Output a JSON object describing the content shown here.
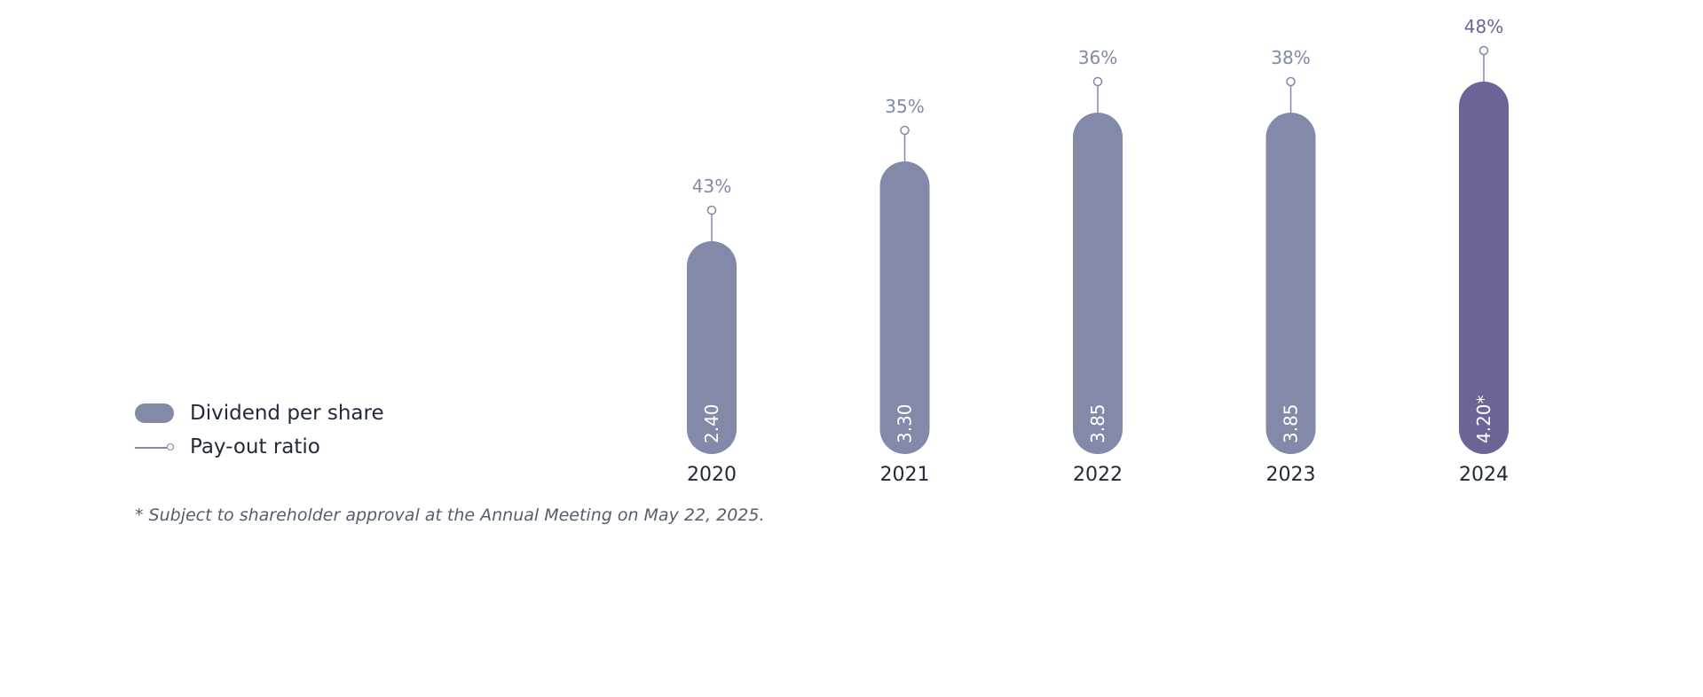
{
  "legend": {
    "dividend_label": "Dividend per share",
    "ratio_label": "Pay-out ratio"
  },
  "footnote": "* Subject to shareholder approval at the Annual Meeting on May 22, 2025.",
  "colors": {
    "bar": "#8289a9",
    "bar_highlight": "#6b6597",
    "ratio_text": "#8289a9",
    "ratio_text_highlight": "#6b6597",
    "axis_text": "#222a3a"
  },
  "chart_data": {
    "type": "bar",
    "categories": [
      "2020",
      "2021",
      "2022",
      "2023",
      "2024"
    ],
    "series": [
      {
        "name": "Dividend per share",
        "values": [
          2.4,
          3.3,
          3.85,
          3.85,
          4.2
        ],
        "labels": [
          "2.40",
          "3.30",
          "3.85",
          "3.85",
          "4.20*"
        ]
      },
      {
        "name": "Pay-out ratio",
        "values": [
          43,
          35,
          36,
          38,
          48
        ],
        "labels": [
          "43%",
          "35%",
          "36%",
          "38%",
          "48%"
        ]
      }
    ],
    "highlight_index": 4
  }
}
